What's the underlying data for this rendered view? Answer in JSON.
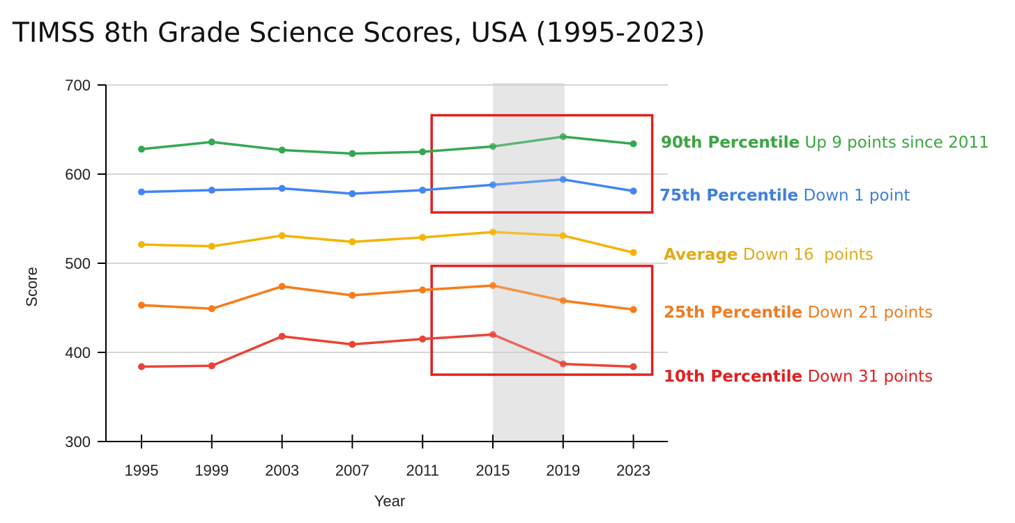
{
  "chart_data": {
    "type": "line",
    "title": "TIMSS 8th Grade Science Scores, USA (1995-2023)",
    "xlabel": "Year",
    "ylabel": "Score",
    "categories": [
      "1995",
      "1999",
      "2003",
      "2007",
      "2011",
      "2015",
      "2019",
      "2023"
    ],
    "ylim": [
      300,
      700
    ],
    "yticks": [
      300,
      400,
      500,
      600,
      700
    ],
    "grid": true,
    "highlight_band": {
      "from": "2015",
      "to": "2019",
      "color": "#e6e6e6"
    },
    "highlight_boxes": [
      {
        "from": "2011",
        "to": "2023",
        "ymin": 557,
        "ymax": 666,
        "color": "#e02020"
      },
      {
        "from": "2011",
        "to": "2023",
        "ymin": 375,
        "ymax": 497,
        "color": "#e02020"
      }
    ],
    "series": [
      {
        "name": "90th Percentile",
        "color": "#34a853",
        "values": [
          628,
          636,
          627,
          623,
          625,
          631,
          642,
          634
        ],
        "annotation": {
          "label": "90th Percentile",
          "detail": "Up 9 points since 2011"
        }
      },
      {
        "name": "75th Percentile",
        "color": "#4285f4",
        "values": [
          580,
          582,
          584,
          578,
          582,
          588,
          594,
          581
        ],
        "annotation": {
          "label": "75th Percentile",
          "detail": "Down 1 point"
        }
      },
      {
        "name": "Average",
        "color": "#f4b400",
        "values": [
          521,
          519,
          531,
          524,
          529,
          535,
          531,
          512
        ],
        "annotation": {
          "label": "Average",
          "detail": "Down 16  points"
        }
      },
      {
        "name": "25th Percentile",
        "color": "#fa7b17",
        "values": [
          453,
          449,
          474,
          464,
          470,
          475,
          458,
          448
        ],
        "annotation": {
          "label": "25th Percentile",
          "detail": "Down 21 points"
        }
      },
      {
        "name": "10th Percentile",
        "color": "#ea4335",
        "values": [
          384,
          385,
          418,
          409,
          415,
          420,
          387,
          384
        ],
        "annotation": {
          "label": "10th Percentile",
          "detail": "Down 31 points"
        }
      }
    ]
  },
  "style": {
    "annotation_colors": {
      "90th Percentile": "#3aa641",
      "75th Percentile": "#3e7fe0",
      "Average": "#e0ab1a",
      "25th Percentile": "#f07c22",
      "10th Percentile": "#e02020"
    },
    "axis_color": "#000000",
    "grid_color": "#c8c8c8"
  }
}
